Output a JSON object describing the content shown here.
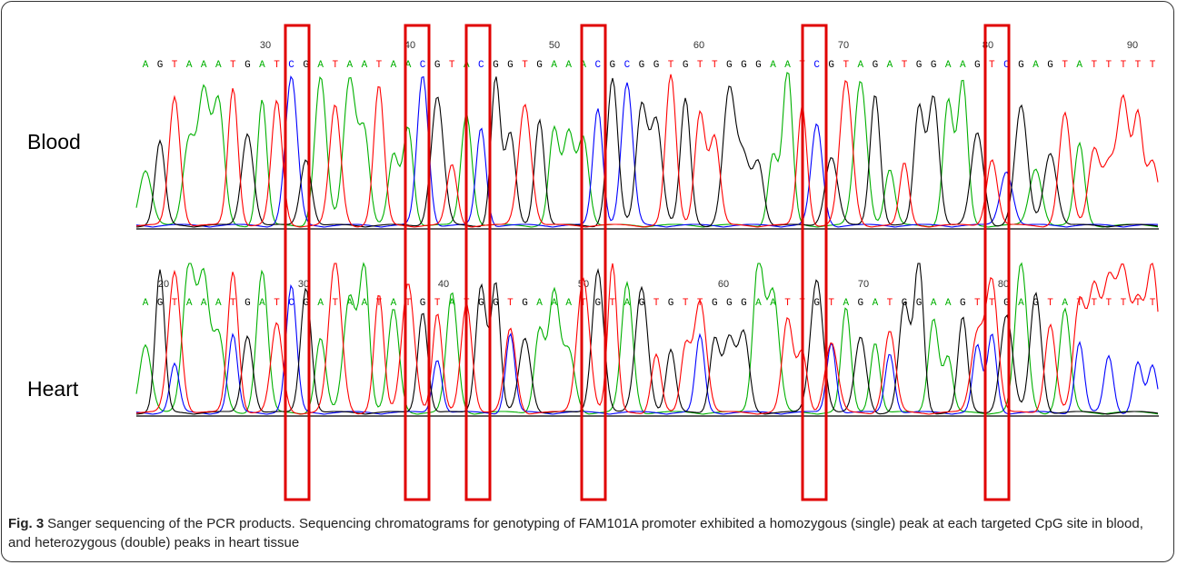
{
  "panels": [
    {
      "label": "Blood",
      "sequence": "AGTAAATGATCGATAATAACGTACGGTGAAACGCGGTGTTGGGAATCGTAGATGGAAGTCGAGTATTTTT",
      "positions": [
        30,
        40,
        50,
        60,
        70,
        80,
        90
      ]
    },
    {
      "label": "Heart",
      "sequence": "AGTAAATGATCGATAATATGTATGGTGAAATGTAGTGTTGGGAATTGTAGATGGAAGTTGAGTATTTTTT",
      "positions": [
        20,
        30,
        40,
        50,
        60,
        70,
        80
      ]
    }
  ],
  "caption": {
    "label": "Fig. 3",
    "text": "Sanger sequencing of the PCR products. Sequencing chromatograms for genotyping of FAM101A promoter exhibited a homozygous (single) peak at each targeted CpG site in blood, and heterozygous (double) peaks in heart tissue"
  }
}
